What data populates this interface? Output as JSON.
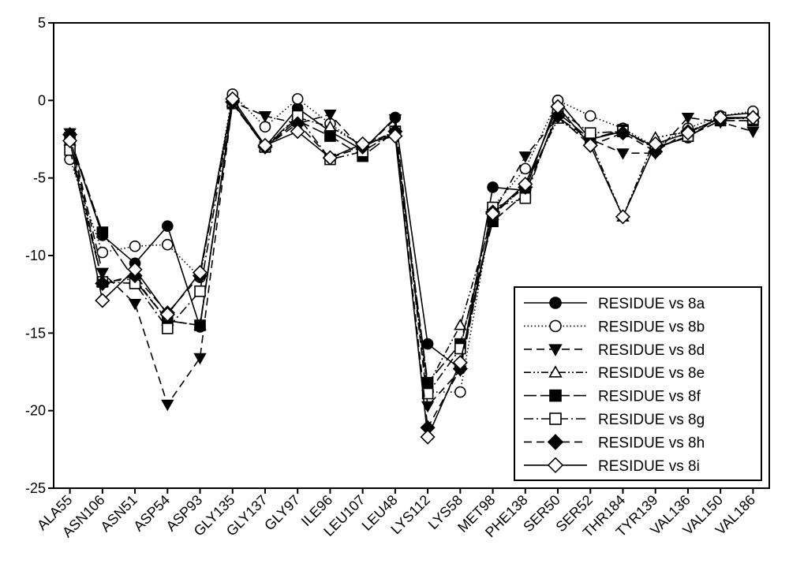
{
  "chart_data": {
    "type": "line",
    "title": "",
    "xlabel": "",
    "ylabel": "",
    "ylim": [
      -25,
      5
    ],
    "yticks": [
      5,
      0,
      -5,
      -10,
      -15,
      -20,
      -25
    ],
    "grid": false,
    "legend_position": "bottom-right",
    "categories": [
      "ALA55",
      "ASN106",
      "ASN51",
      "ASP54",
      "ASP93",
      "GLY135",
      "GLY137",
      "GLY97",
      "ILE96",
      "LEU107",
      "LEU48",
      "LYS112",
      "LYS58",
      "MET98",
      "PHE138",
      "SER50",
      "SER52",
      "THR184",
      "TYR139",
      "VAL136",
      "VAL150",
      "VAL186"
    ],
    "series": [
      {
        "name": "RESIDUE vs 8a",
        "marker": "circle-filled",
        "dash": "solid",
        "values": [
          -2.5,
          -8.7,
          -10.5,
          -8.1,
          -14.6,
          -0.1,
          -3.0,
          -0.5,
          -2.0,
          -3.2,
          -1.1,
          -15.7,
          -17.3,
          -5.6,
          -5.8,
          0.0,
          -2.5,
          -2.0,
          -3.0,
          -2.4,
          -1.0,
          -0.8
        ]
      },
      {
        "name": "RESIDUE vs 8b",
        "marker": "circle-open",
        "dash": "dotted",
        "values": [
          -3.8,
          -9.8,
          -9.4,
          -9.3,
          -11.4,
          0.4,
          -1.7,
          0.1,
          -1.5,
          -3.0,
          -2.0,
          -18.8,
          -18.8,
          -6.9,
          -4.4,
          0.0,
          -1.0,
          -1.8,
          -3.0,
          -1.8,
          -1.0,
          -0.7
        ]
      },
      {
        "name": "RESIDUE vs 8d",
        "marker": "triangle-down-filled",
        "dash": "dashed",
        "values": [
          -2.1,
          -11.1,
          -13.1,
          -19.6,
          -16.6,
          -0.1,
          -1.0,
          -1.5,
          -0.9,
          -3.2,
          -1.2,
          -19.7,
          -17.4,
          -7.3,
          -3.6,
          -1.1,
          -2.5,
          -3.4,
          -3.4,
          -1.1,
          -1.4,
          -2.0
        ]
      },
      {
        "name": "RESIDUE vs 8e",
        "marker": "triangle-up-open",
        "dash": "dash-dot-dot",
        "values": [
          -2.6,
          -11.7,
          -11.5,
          -14.2,
          -14.5,
          -0.1,
          -3.0,
          -1.1,
          -1.7,
          -2.9,
          -2.0,
          -18.4,
          -14.5,
          -7.4,
          -5.5,
          -1.2,
          -2.6,
          -7.5,
          -2.4,
          -2.0,
          -1.2,
          -1.1
        ]
      },
      {
        "name": "RESIDUE vs 8f",
        "marker": "square-filled",
        "dash": "long-dash",
        "values": [
          -2.4,
          -8.5,
          -11.6,
          -14.2,
          -14.5,
          -0.2,
          -3.0,
          -1.3,
          -2.3,
          -3.6,
          -2.0,
          -18.2,
          -15.7,
          -7.8,
          -6.0,
          -0.8,
          -2.5,
          -1.9,
          -3.1,
          -2.3,
          -1.3,
          -1.3
        ]
      },
      {
        "name": "RESIDUE vs 8g",
        "marker": "square-open",
        "dash": "dash-dot",
        "values": [
          -3.2,
          -11.7,
          -11.8,
          -14.7,
          -12.3,
          -0.1,
          -3.0,
          -1.0,
          -3.8,
          -3.3,
          -2.0,
          -18.9,
          -16.0,
          -6.9,
          -6.3,
          -0.6,
          -2.1,
          -2.0,
          -3.1,
          -2.3,
          -1.1,
          -1.2
        ]
      },
      {
        "name": "RESIDUE vs 8h",
        "marker": "diamond-filled",
        "dash": "dashed",
        "values": [
          -2.2,
          -11.8,
          -11.3,
          -13.7,
          -11.3,
          -0.1,
          -3.0,
          -1.5,
          -3.7,
          -3.0,
          -2.0,
          -21.1,
          -17.3,
          -7.2,
          -5.6,
          -1.0,
          -2.9,
          -2.1,
          -3.3,
          -2.0,
          -1.2,
          -1.1
        ]
      },
      {
        "name": "RESIDUE vs 8i",
        "marker": "diamond-open",
        "dash": "solid",
        "values": [
          -2.6,
          -12.9,
          -10.9,
          -13.8,
          -11.1,
          0.1,
          -2.9,
          -2.0,
          -3.7,
          -2.8,
          -2.3,
          -21.7,
          -16.9,
          -7.3,
          -5.4,
          -0.4,
          -2.9,
          -7.5,
          -2.8,
          -2.1,
          -1.1,
          -1.1
        ]
      }
    ]
  }
}
